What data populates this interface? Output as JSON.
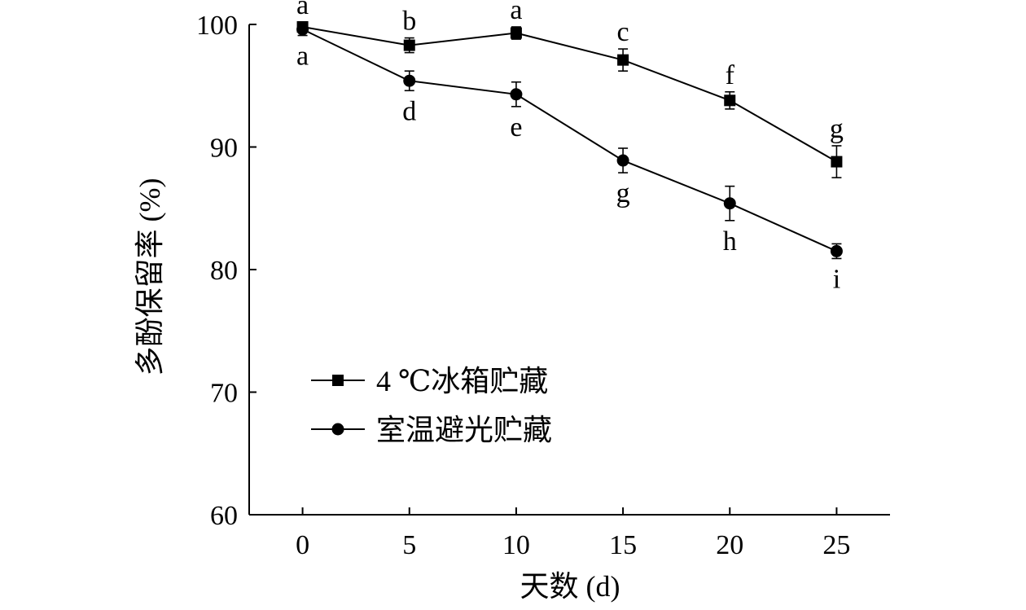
{
  "chart_data": {
    "type": "line",
    "title": "",
    "xlabel": "天数 (d)",
    "ylabel": "多酚保留率 (%)",
    "x": [
      0,
      5,
      10,
      15,
      20,
      25
    ],
    "x_ticks": [
      "0",
      "5",
      "10",
      "15",
      "20",
      "25"
    ],
    "y_ticks": [
      "60",
      "70",
      "80",
      "90",
      "100"
    ],
    "xlim": [
      -2.5,
      27.5
    ],
    "ylim": [
      60,
      100
    ],
    "grid": false,
    "legend_position": "bottom-left",
    "series": [
      {
        "name": "4 ℃冰箱贮藏",
        "marker": "square",
        "values": [
          99.8,
          98.3,
          99.3,
          97.1,
          93.8,
          88.8
        ],
        "errors": [
          0.4,
          0.6,
          0.5,
          0.9,
          0.7,
          1.3
        ],
        "labels": [
          "a",
          "b",
          "a",
          "c",
          "f",
          "g"
        ],
        "label_position": "above"
      },
      {
        "name": "室温避光贮藏",
        "marker": "circle",
        "values": [
          99.6,
          95.4,
          94.3,
          88.9,
          85.4,
          81.5
        ],
        "errors": [
          0.5,
          0.8,
          1.0,
          1.0,
          1.4,
          0.6
        ],
        "labels": [
          "a",
          "d",
          "e",
          "g",
          "h",
          "i"
        ],
        "label_position": "below"
      }
    ]
  }
}
